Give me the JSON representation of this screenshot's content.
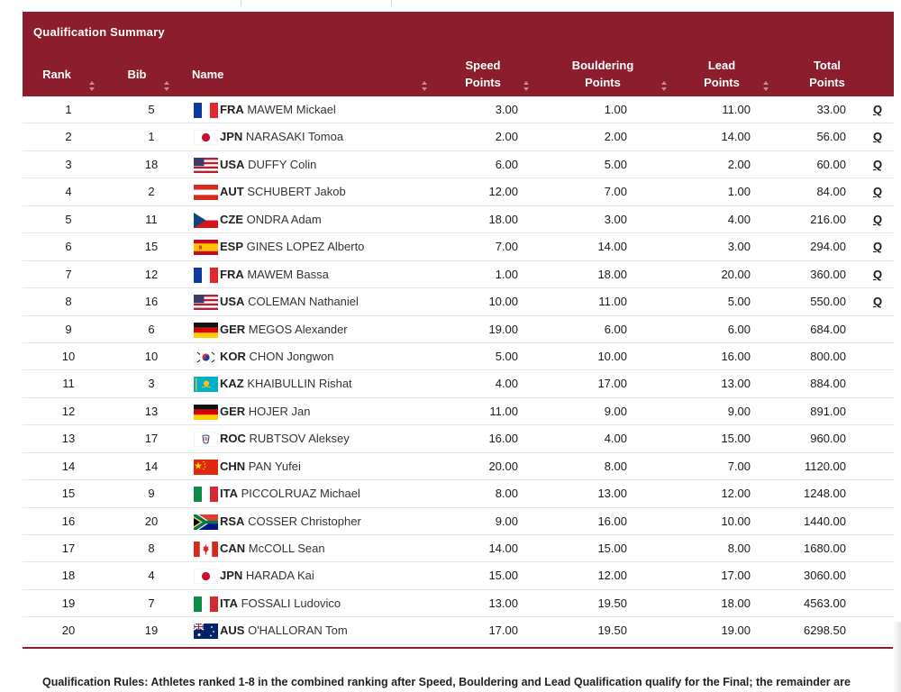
{
  "table": {
    "title": "Qualification Summary",
    "columns": {
      "rank": "Rank",
      "bib": "Bib",
      "name": "Name",
      "speed_1": "Speed",
      "speed_2": "Points",
      "bouldering_1": "Bouldering",
      "bouldering_2": "Points",
      "lead_1": "Lead",
      "lead_2": "Points",
      "total_1": "Total",
      "total_2": "Points"
    },
    "rows": [
      {
        "rank": "1",
        "bib": "5",
        "flag": "FRA",
        "noc": "FRA",
        "name": "MAWEM Mickael",
        "speed": "3.00",
        "bouldering": "1.00",
        "lead": "11.00",
        "total": "33.00",
        "q": "Q"
      },
      {
        "rank": "2",
        "bib": "1",
        "flag": "JPN",
        "noc": "JPN",
        "name": "NARASAKI Tomoa",
        "speed": "2.00",
        "bouldering": "2.00",
        "lead": "14.00",
        "total": "56.00",
        "q": "Q"
      },
      {
        "rank": "3",
        "bib": "18",
        "flag": "USA",
        "noc": "USA",
        "name": "DUFFY Colin",
        "speed": "6.00",
        "bouldering": "5.00",
        "lead": "2.00",
        "total": "60.00",
        "q": "Q"
      },
      {
        "rank": "4",
        "bib": "2",
        "flag": "AUT",
        "noc": "AUT",
        "name": "SCHUBERT Jakob",
        "speed": "12.00",
        "bouldering": "7.00",
        "lead": "1.00",
        "total": "84.00",
        "q": "Q"
      },
      {
        "rank": "5",
        "bib": "11",
        "flag": "CZE",
        "noc": "CZE",
        "name": "ONDRA Adam",
        "speed": "18.00",
        "bouldering": "3.00",
        "lead": "4.00",
        "total": "216.00",
        "q": "Q"
      },
      {
        "rank": "6",
        "bib": "15",
        "flag": "ESP",
        "noc": "ESP",
        "name": "GINES LOPEZ Alberto",
        "speed": "7.00",
        "bouldering": "14.00",
        "lead": "3.00",
        "total": "294.00",
        "q": "Q"
      },
      {
        "rank": "7",
        "bib": "12",
        "flag": "FRA",
        "noc": "FRA",
        "name": "MAWEM Bassa",
        "speed": "1.00",
        "bouldering": "18.00",
        "lead": "20.00",
        "total": "360.00",
        "q": "Q"
      },
      {
        "rank": "8",
        "bib": "16",
        "flag": "USA",
        "noc": "USA",
        "name": "COLEMAN Nathaniel",
        "speed": "10.00",
        "bouldering": "11.00",
        "lead": "5.00",
        "total": "550.00",
        "q": "Q"
      },
      {
        "rank": "9",
        "bib": "6",
        "flag": "GER",
        "noc": "GER",
        "name": "MEGOS Alexander",
        "speed": "19.00",
        "bouldering": "6.00",
        "lead": "6.00",
        "total": "684.00",
        "q": ""
      },
      {
        "rank": "10",
        "bib": "10",
        "flag": "KOR",
        "noc": "KOR",
        "name": "CHON Jongwon",
        "speed": "5.00",
        "bouldering": "10.00",
        "lead": "16.00",
        "total": "800.00",
        "q": ""
      },
      {
        "rank": "11",
        "bib": "3",
        "flag": "KAZ",
        "noc": "KAZ",
        "name": "KHAIBULLIN Rishat",
        "speed": "4.00",
        "bouldering": "17.00",
        "lead": "13.00",
        "total": "884.00",
        "q": ""
      },
      {
        "rank": "12",
        "bib": "13",
        "flag": "GER",
        "noc": "GER",
        "name": "HOJER Jan",
        "speed": "11.00",
        "bouldering": "9.00",
        "lead": "9.00",
        "total": "891.00",
        "q": ""
      },
      {
        "rank": "13",
        "bib": "17",
        "flag": "ROC",
        "noc": "ROC",
        "name": "RUBTSOV Aleksey",
        "speed": "16.00",
        "bouldering": "4.00",
        "lead": "15.00",
        "total": "960.00",
        "q": ""
      },
      {
        "rank": "14",
        "bib": "14",
        "flag": "CHN",
        "noc": "CHN",
        "name": "PAN Yufei",
        "speed": "20.00",
        "bouldering": "8.00",
        "lead": "7.00",
        "total": "1120.00",
        "q": ""
      },
      {
        "rank": "15",
        "bib": "9",
        "flag": "ITA",
        "noc": "ITA",
        "name": "PICCOLRUAZ Michael",
        "speed": "8.00",
        "bouldering": "13.00",
        "lead": "12.00",
        "total": "1248.00",
        "q": ""
      },
      {
        "rank": "16",
        "bib": "20",
        "flag": "RSA",
        "noc": "RSA",
        "name": "COSSER Christopher",
        "speed": "9.00",
        "bouldering": "16.00",
        "lead": "10.00",
        "total": "1440.00",
        "q": ""
      },
      {
        "rank": "17",
        "bib": "8",
        "flag": "CAN",
        "noc": "CAN",
        "name": "McCOLL Sean",
        "speed": "14.00",
        "bouldering": "15.00",
        "lead": "8.00",
        "total": "1680.00",
        "q": ""
      },
      {
        "rank": "18",
        "bib": "4",
        "flag": "JPN",
        "noc": "JPN",
        "name": "HARADA Kai",
        "speed": "15.00",
        "bouldering": "12.00",
        "lead": "17.00",
        "total": "3060.00",
        "q": ""
      },
      {
        "rank": "19",
        "bib": "7",
        "flag": "ITA",
        "noc": "ITA",
        "name": "FOSSALI Ludovico",
        "speed": "13.00",
        "bouldering": "19.50",
        "lead": "18.00",
        "total": "4563.00",
        "q": ""
      },
      {
        "rank": "20",
        "bib": "19",
        "flag": "AUS",
        "noc": "AUS",
        "name": "O'HALLORAN Tom",
        "speed": "17.00",
        "bouldering": "19.50",
        "lead": "19.00",
        "total": "6298.50",
        "q": ""
      }
    ]
  },
  "rules_text": "Qualification Rules: Athletes ranked 1-8 in the combined ranking after Speed, Bouldering and Lead Qualification qualify for the Final; the remainder are",
  "colors": {
    "header_bg": "#8c1d2c",
    "header_text": "#ffffff"
  }
}
